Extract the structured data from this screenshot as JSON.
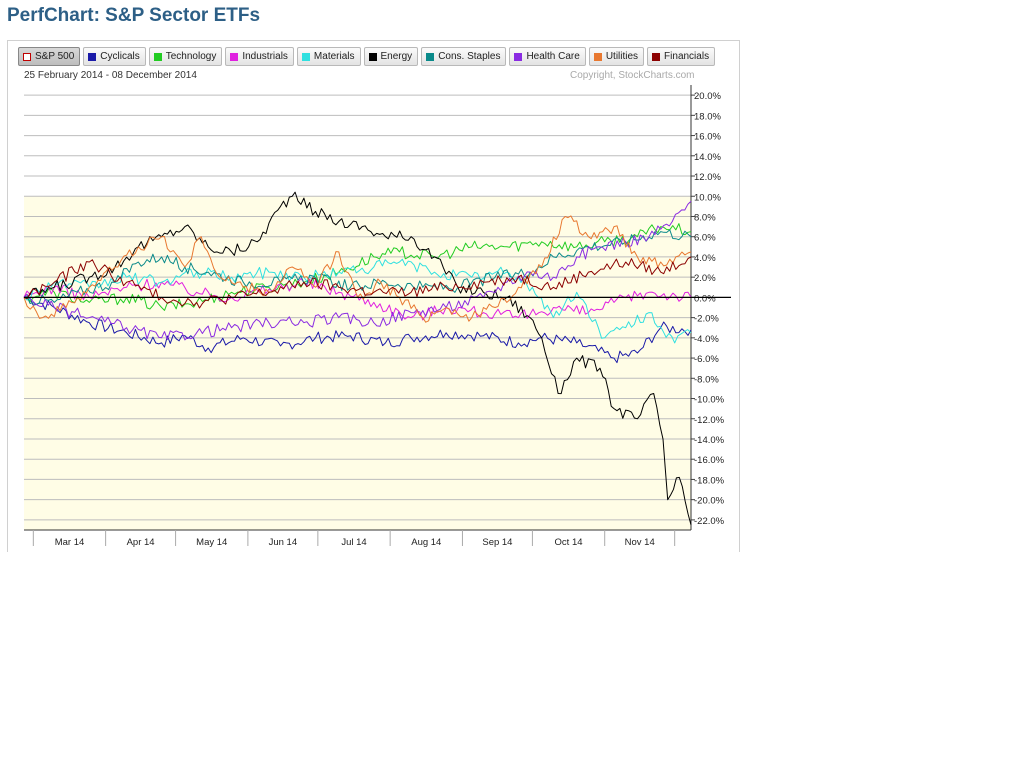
{
  "page": {
    "title": "PerfChart: S&P Sector ETFs"
  },
  "legend": {
    "items": [
      {
        "label": "S&P 500",
        "color": "#c00000",
        "active": true
      },
      {
        "label": "Cyclicals",
        "color": "#1a1aa8"
      },
      {
        "label": "Technology",
        "color": "#22cc22"
      },
      {
        "label": "Industrials",
        "color": "#e020e0"
      },
      {
        "label": "Materials",
        "color": "#30e0e0"
      },
      {
        "label": "Energy",
        "color": "#000000"
      },
      {
        "label": "Cons. Staples",
        "color": "#0a8a8a"
      },
      {
        "label": "Health Care",
        "color": "#8a2be2"
      },
      {
        "label": "Utilities",
        "color": "#e87830"
      },
      {
        "label": "Financials",
        "color": "#8b0000"
      }
    ]
  },
  "header": {
    "date_range": "25 February 2014 - 08 December 2014",
    "copyright": "Copyright, StockCharts.com"
  },
  "chart_data": {
    "type": "line",
    "title": "PerfChart: S&P Sector ETFs",
    "xlabel": "",
    "ylabel": "",
    "x_range": [
      "2014-02-25",
      "2014-12-08"
    ],
    "x_tick_labels": [
      "Mar 14",
      "Apr 14",
      "May 14",
      "Jun 14",
      "Jul 14",
      "Aug 14",
      "Sep 14",
      "Oct 14",
      "Nov 14"
    ],
    "x_ticks": [
      "2014-03-01",
      "2014-04-01",
      "2014-05-01",
      "2014-06-01",
      "2014-07-01",
      "2014-08-01",
      "2014-09-01",
      "2014-10-01",
      "2014-11-01",
      "2014-12-01"
    ],
    "ylim": [
      -23,
      21
    ],
    "y_ticks": [
      20,
      18,
      16,
      14,
      12,
      10,
      8,
      6,
      4,
      2,
      0,
      -2,
      -4,
      -6,
      -8,
      -10,
      -12,
      -14,
      -16,
      -18,
      -20,
      -22
    ],
    "y_tick_labels": [
      "20.0%",
      "18.0%",
      "16.0%",
      "14.0%",
      "12.0%",
      "10.0%",
      "8.0%",
      "6.0%",
      "4.0%",
      "2.0%",
      "0.0%",
      "-2.0%",
      "-4.0%",
      "-6.0%",
      "-8.0%",
      "-10.0%",
      "-12.0%",
      "-14.0%",
      "-16.0%",
      "-18.0%",
      "-20.0%",
      "-22.0%"
    ],
    "baseline": 0,
    "grid": true,
    "background_bands": "light yellow below 10%",
    "legend_position": "top",
    "series": [
      {
        "name": "Cyclicals",
        "color": "#1a1aa8",
        "points": [
          [
            "2014-02-25",
            0
          ],
          [
            "2014-03-10",
            -1
          ],
          [
            "2014-03-25",
            -2.5
          ],
          [
            "2014-04-10",
            -3.5
          ],
          [
            "2014-04-25",
            -4.5
          ],
          [
            "2014-05-05",
            -3.8
          ],
          [
            "2014-05-15",
            -5
          ],
          [
            "2014-05-30",
            -4
          ],
          [
            "2014-06-15",
            -4.8
          ],
          [
            "2014-06-30",
            -4
          ],
          [
            "2014-07-15",
            -3.8
          ],
          [
            "2014-07-30",
            -4.5
          ],
          [
            "2014-08-10",
            -4
          ],
          [
            "2014-08-25",
            -3.5
          ],
          [
            "2014-09-10",
            -3.8
          ],
          [
            "2014-09-25",
            -4.5
          ],
          [
            "2014-10-05",
            -4
          ],
          [
            "2014-10-20",
            -4.5
          ],
          [
            "2014-11-05",
            -6
          ],
          [
            "2014-11-15",
            -5.5
          ],
          [
            "2014-11-25",
            -3
          ],
          [
            "2014-12-08",
            -3.2
          ]
        ]
      },
      {
        "name": "Technology",
        "color": "#22cc22",
        "points": [
          [
            "2014-02-25",
            0
          ],
          [
            "2014-03-10",
            0.5
          ],
          [
            "2014-03-25",
            -0.5
          ],
          [
            "2014-04-10",
            0
          ],
          [
            "2014-04-25",
            -1
          ],
          [
            "2014-05-10",
            -0.5
          ],
          [
            "2014-05-25",
            0.5
          ],
          [
            "2014-06-10",
            1
          ],
          [
            "2014-06-25",
            1.5
          ],
          [
            "2014-07-10",
            2.5
          ],
          [
            "2014-07-25",
            4
          ],
          [
            "2014-08-05",
            4.5
          ],
          [
            "2014-08-20",
            4
          ],
          [
            "2014-09-05",
            5
          ],
          [
            "2014-09-20",
            5
          ],
          [
            "2014-10-05",
            5.5
          ],
          [
            "2014-10-20",
            5
          ],
          [
            "2014-11-01",
            5.5
          ],
          [
            "2014-11-15",
            6
          ],
          [
            "2014-11-25",
            7
          ],
          [
            "2014-12-08",
            6.5
          ]
        ]
      },
      {
        "name": "Industrials",
        "color": "#e020e0",
        "points": [
          [
            "2014-02-25",
            0
          ],
          [
            "2014-03-10",
            1
          ],
          [
            "2014-03-25",
            0
          ],
          [
            "2014-04-10",
            1
          ],
          [
            "2014-04-25",
            1.5
          ],
          [
            "2014-05-10",
            0.5
          ],
          [
            "2014-05-25",
            0
          ],
          [
            "2014-06-10",
            0.8
          ],
          [
            "2014-06-25",
            1.5
          ],
          [
            "2014-07-10",
            0.5
          ],
          [
            "2014-07-25",
            -0.5
          ],
          [
            "2014-08-10",
            -2
          ],
          [
            "2014-08-25",
            -1
          ],
          [
            "2014-09-10",
            -1.5
          ],
          [
            "2014-09-25",
            -2
          ],
          [
            "2014-10-10",
            -1
          ],
          [
            "2014-10-25",
            -1.5
          ],
          [
            "2014-11-05",
            -0.5
          ],
          [
            "2014-11-20",
            0.5
          ],
          [
            "2014-12-08",
            0
          ]
        ]
      },
      {
        "name": "Materials",
        "color": "#30e0e0",
        "points": [
          [
            "2014-02-25",
            0
          ],
          [
            "2014-03-10",
            1.5
          ],
          [
            "2014-03-25",
            1
          ],
          [
            "2014-04-10",
            2
          ],
          [
            "2014-04-25",
            1.5
          ],
          [
            "2014-05-10",
            2.5
          ],
          [
            "2014-05-25",
            2
          ],
          [
            "2014-06-10",
            2.5
          ],
          [
            "2014-06-25",
            2
          ],
          [
            "2014-07-10",
            2.5
          ],
          [
            "2014-07-25",
            3
          ],
          [
            "2014-08-05",
            3.5
          ],
          [
            "2014-08-20",
            2.5
          ],
          [
            "2014-09-05",
            2
          ],
          [
            "2014-09-20",
            2.5
          ],
          [
            "2014-10-01",
            1
          ],
          [
            "2014-10-10",
            -2
          ],
          [
            "2014-10-20",
            0.5
          ],
          [
            "2014-11-01",
            -4
          ],
          [
            "2014-11-10",
            -3
          ],
          [
            "2014-11-20",
            -1.5
          ],
          [
            "2014-12-01",
            -4.5
          ],
          [
            "2014-12-08",
            -3.5
          ]
        ]
      },
      {
        "name": "Energy",
        "color": "#000000",
        "points": [
          [
            "2014-02-25",
            0
          ],
          [
            "2014-03-10",
            1
          ],
          [
            "2014-03-25",
            2
          ],
          [
            "2014-04-05",
            3
          ],
          [
            "2014-04-15",
            5
          ],
          [
            "2014-04-25",
            6
          ],
          [
            "2014-05-05",
            7
          ],
          [
            "2014-05-15",
            5
          ],
          [
            "2014-05-25",
            4.5
          ],
          [
            "2014-06-05",
            5.5
          ],
          [
            "2014-06-15",
            9
          ],
          [
            "2014-06-20",
            10
          ],
          [
            "2014-06-30",
            8.5
          ],
          [
            "2014-07-10",
            7.5
          ],
          [
            "2014-07-20",
            7
          ],
          [
            "2014-07-30",
            6
          ],
          [
            "2014-08-10",
            6
          ],
          [
            "2014-08-20",
            4
          ],
          [
            "2014-08-30",
            1
          ],
          [
            "2014-09-10",
            0.5
          ],
          [
            "2014-09-20",
            0
          ],
          [
            "2014-09-30",
            -2
          ],
          [
            "2014-10-05",
            -4
          ],
          [
            "2014-10-12",
            -9.5
          ],
          [
            "2014-10-20",
            -6
          ],
          [
            "2014-10-30",
            -7
          ],
          [
            "2014-11-05",
            -11
          ],
          [
            "2014-11-15",
            -12
          ],
          [
            "2014-11-22",
            -9.5
          ],
          [
            "2014-11-26",
            -14
          ],
          [
            "2014-11-28",
            -20
          ],
          [
            "2014-12-03",
            -17.8
          ],
          [
            "2014-12-08",
            -22.5
          ]
        ]
      },
      {
        "name": "Cons. Staples",
        "color": "#0a8a8a",
        "points": [
          [
            "2014-02-25",
            0
          ],
          [
            "2014-03-10",
            -0.5
          ],
          [
            "2014-03-20",
            0.5
          ],
          [
            "2014-04-05",
            1.5
          ],
          [
            "2014-04-15",
            3.5
          ],
          [
            "2014-04-25",
            4
          ],
          [
            "2014-05-05",
            3
          ],
          [
            "2014-05-15",
            2.5
          ],
          [
            "2014-05-30",
            1.5
          ],
          [
            "2014-06-15",
            1.5
          ],
          [
            "2014-06-30",
            2
          ],
          [
            "2014-07-15",
            1
          ],
          [
            "2014-07-30",
            1.5
          ],
          [
            "2014-08-15",
            1
          ],
          [
            "2014-08-30",
            1
          ],
          [
            "2014-09-15",
            2
          ],
          [
            "2014-09-30",
            2.5
          ],
          [
            "2014-10-10",
            4
          ],
          [
            "2014-10-25",
            5
          ],
          [
            "2014-11-10",
            5.5
          ],
          [
            "2014-11-25",
            6.5
          ],
          [
            "2014-12-08",
            6
          ]
        ]
      },
      {
        "name": "Health Care",
        "color": "#8a2be2",
        "points": [
          [
            "2014-02-25",
            0
          ],
          [
            "2014-03-10",
            -1
          ],
          [
            "2014-03-25",
            -2
          ],
          [
            "2014-04-10",
            -3
          ],
          [
            "2014-04-25",
            -4
          ],
          [
            "2014-05-10",
            -3.5
          ],
          [
            "2014-05-25",
            -3
          ],
          [
            "2014-06-10",
            -2.5
          ],
          [
            "2014-06-25",
            -2.5
          ],
          [
            "2014-07-10",
            -2
          ],
          [
            "2014-07-25",
            -2.5
          ],
          [
            "2014-08-10",
            -1.5
          ],
          [
            "2014-08-25",
            -1
          ],
          [
            "2014-09-10",
            0
          ],
          [
            "2014-09-20",
            1.5
          ],
          [
            "2014-09-30",
            2.5
          ],
          [
            "2014-10-10",
            2
          ],
          [
            "2014-10-20",
            4
          ],
          [
            "2014-10-30",
            5
          ],
          [
            "2014-11-10",
            5.5
          ],
          [
            "2014-11-20",
            6
          ],
          [
            "2014-11-30",
            7.5
          ],
          [
            "2014-12-08",
            9.5
          ]
        ]
      },
      {
        "name": "Utilities",
        "color": "#e87830",
        "points": [
          [
            "2014-02-25",
            0
          ],
          [
            "2014-03-05",
            -2
          ],
          [
            "2014-03-15",
            -1
          ],
          [
            "2014-03-25",
            1
          ],
          [
            "2014-04-05",
            3
          ],
          [
            "2014-04-15",
            5
          ],
          [
            "2014-04-25",
            6
          ],
          [
            "2014-05-05",
            3
          ],
          [
            "2014-05-12",
            6
          ],
          [
            "2014-05-20",
            2
          ],
          [
            "2014-05-30",
            1
          ],
          [
            "2014-06-10",
            0.5
          ],
          [
            "2014-06-20",
            3
          ],
          [
            "2014-06-30",
            1
          ],
          [
            "2014-07-10",
            4.5
          ],
          [
            "2014-07-18",
            0
          ],
          [
            "2014-07-28",
            1.5
          ],
          [
            "2014-08-05",
            0
          ],
          [
            "2014-08-15",
            -2
          ],
          [
            "2014-08-25",
            -1
          ],
          [
            "2014-09-05",
            -2
          ],
          [
            "2014-09-15",
            -1
          ],
          [
            "2014-09-25",
            1
          ],
          [
            "2014-10-05",
            3
          ],
          [
            "2014-10-15",
            8
          ],
          [
            "2014-10-25",
            6
          ],
          [
            "2014-11-05",
            7
          ],
          [
            "2014-11-15",
            4
          ],
          [
            "2014-11-25",
            3.5
          ],
          [
            "2014-12-08",
            4.5
          ]
        ]
      },
      {
        "name": "Financials",
        "color": "#8b0000",
        "points": [
          [
            "2014-02-25",
            0
          ],
          [
            "2014-03-10",
            1.5
          ],
          [
            "2014-03-25",
            3.5
          ],
          [
            "2014-04-10",
            1.5
          ],
          [
            "2014-04-25",
            0
          ],
          [
            "2014-05-10",
            -0.5
          ],
          [
            "2014-05-25",
            0
          ],
          [
            "2014-06-10",
            0.5
          ],
          [
            "2014-06-25",
            1.5
          ],
          [
            "2014-07-10",
            1
          ],
          [
            "2014-07-25",
            0.5
          ],
          [
            "2014-08-10",
            0.5
          ],
          [
            "2014-08-25",
            1
          ],
          [
            "2014-09-10",
            1.5
          ],
          [
            "2014-09-25",
            2
          ],
          [
            "2014-10-10",
            1
          ],
          [
            "2014-10-25",
            2.5
          ],
          [
            "2014-11-10",
            3.5
          ],
          [
            "2014-11-25",
            2.5
          ],
          [
            "2014-12-08",
            4
          ]
        ]
      }
    ]
  }
}
